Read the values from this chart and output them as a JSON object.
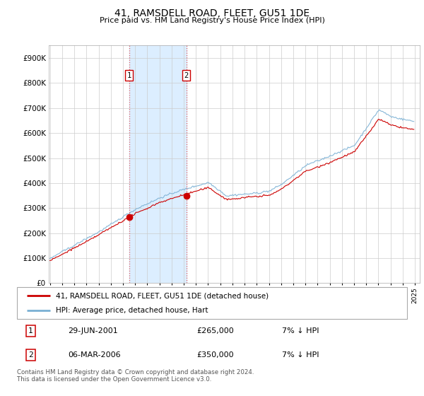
{
  "title": "41, RAMSDELL ROAD, FLEET, GU51 1DE",
  "subtitle": "Price paid vs. HM Land Registry's House Price Index (HPI)",
  "ytick_labels": [
    "£0",
    "£100K",
    "£200K",
    "£300K",
    "£400K",
    "£500K",
    "£600K",
    "£700K",
    "£800K",
    "£900K"
  ],
  "yticks": [
    0,
    100000,
    200000,
    300000,
    400000,
    500000,
    600000,
    700000,
    800000,
    900000
  ],
  "ylim": [
    0,
    950000
  ],
  "sale1_x": 2001.5,
  "sale1_y": 265000,
  "sale2_x": 2006.2,
  "sale2_y": 350000,
  "legend_line1": "41, RAMSDELL ROAD, FLEET, GU51 1DE (detached house)",
  "legend_line2": "HPI: Average price, detached house, Hart",
  "table_row1": [
    "1",
    "29-JUN-2001",
    "£265,000",
    "7% ↓ HPI"
  ],
  "table_row2": [
    "2",
    "06-MAR-2006",
    "£350,000",
    "7% ↓ HPI"
  ],
  "footer": "Contains HM Land Registry data © Crown copyright and database right 2024.\nThis data is licensed under the Open Government Licence v3.0.",
  "line_color_red": "#cc0000",
  "line_color_blue": "#7ab0d4",
  "shade_color": "#dceeff",
  "vline_color": "#e06060",
  "background_color": "#ffffff",
  "xlim_left": 1994.9,
  "xlim_right": 2025.4
}
